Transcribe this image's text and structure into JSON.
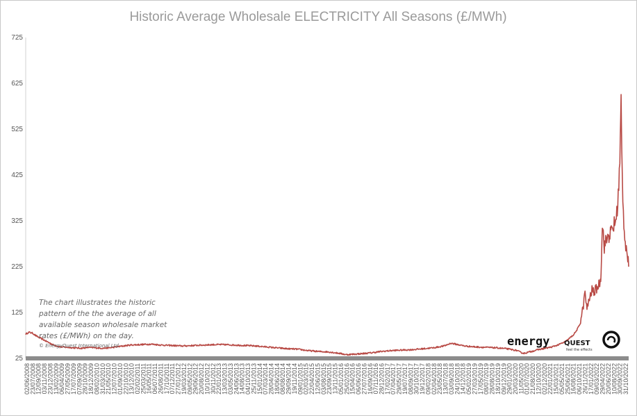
{
  "chart_data": {
    "type": "line",
    "title": "Historic Average Wholesale ELECTRICITY All Seasons (£/MWh)",
    "xlabel": "",
    "ylabel": "",
    "ylim": [
      25,
      725
    ],
    "yticks": [
      25,
      125,
      225,
      325,
      425,
      525,
      625,
      725
    ],
    "grid": false,
    "line_color": "#b84a45",
    "x_ticks": [
      "02/06/2008",
      "23/07/2008",
      "12/09/2008",
      "03/11/2008",
      "23/12/2008",
      "13/02/2009",
      "06/04/2009",
      "27/05/2009",
      "17/07/2009",
      "07/09/2009",
      "28/10/2009",
      "18/12/2009",
      "08/02/2010",
      "31/03/2010",
      "21/05/2010",
      "12/07/2010",
      "01/09/2010",
      "22/10/2010",
      "13/12/2010",
      "02/02/2011",
      "25/03/2011",
      "16/05/2011",
      "06/07/2011",
      "26/08/2011",
      "17/10/2011",
      "07/12/2011",
      "27/01/2012",
      "19/03/2012",
      "09/05/2012",
      "29/06/2012",
      "20/08/2012",
      "10/10/2012",
      "30/11/2012",
      "22/01/2013",
      "13/03/2013",
      "03/05/2013",
      "24/06/2013",
      "14/08/2013",
      "04/10/2013",
      "25/11/2013",
      "15/01/2014",
      "07/03/2014",
      "28/04/2014",
      "18/06/2014",
      "08/08/2014",
      "29/09/2014",
      "19/11/2014",
      "09/01/2015",
      "02/03/2015",
      "22/04/2015",
      "12/06/2015",
      "03/08/2015",
      "23/09/2015",
      "13/11/2015",
      "05/01/2016",
      "25/02/2016",
      "15/04/2016",
      "06/06/2016",
      "27/07/2016",
      "16/09/2016",
      "07/11/2016",
      "28/12/2016",
      "17/02/2017",
      "07/04/2017",
      "29/05/2017",
      "19/07/2017",
      "08/09/2017",
      "30/10/2017",
      "19/12/2017",
      "09/02/2018",
      "02/04/2018",
      "23/05/2018",
      "13/07/2018",
      "03/09/2018",
      "24/10/2018",
      "14/12/2018",
      "05/02/2019",
      "27/03/2019",
      "17/05/2019",
      "08/07/2019",
      "28/08/2019",
      "18/10/2019",
      "09/12/2019",
      "29/01/2020",
      "20/03/2020",
      "11/05/2020",
      "01/07/2020",
      "21/08/2020",
      "12/10/2020",
      "02/12/2020",
      "22/01/2021",
      "15/03/2021",
      "05/05/2021",
      "25/06/2021",
      "16/08/2021",
      "06/10/2021",
      "26/11/2021",
      "17/01/2022",
      "09/03/2022",
      "29/04/2022",
      "20/06/2022",
      "10/08/2022",
      "30/09/2022",
      "31/10/2022"
    ],
    "x_start": "02/06/2008",
    "x_end": "31/10/2022",
    "series": [
      {
        "x": [
          "02/06/2008",
          "01/07/2008",
          "01/08/2008",
          "01/09/2008",
          "01/10/2008",
          "01/11/2008",
          "01/12/2008",
          "01/01/2009",
          "01/02/2009",
          "01/03/2009",
          "01/04/2009",
          "01/06/2009",
          "01/08/2009",
          "01/10/2009",
          "01/12/2009",
          "01/02/2010",
          "01/04/2010",
          "01/06/2010",
          "01/08/2010",
          "01/10/2010",
          "01/12/2010",
          "01/03/2011",
          "01/06/2011",
          "01/09/2011",
          "01/12/2011",
          "01/03/2012",
          "01/06/2012",
          "01/09/2012",
          "01/12/2012",
          "01/03/2013",
          "01/06/2013",
          "01/09/2013",
          "01/12/2013",
          "01/03/2014",
          "01/06/2014",
          "01/09/2014",
          "01/12/2014",
          "01/03/2015",
          "01/06/2015",
          "01/09/2015",
          "01/12/2015",
          "01/02/2016",
          "01/04/2016",
          "01/06/2016",
          "01/09/2016",
          "01/12/2016",
          "01/03/2017",
          "01/06/2017",
          "01/09/2017",
          "01/12/2017",
          "01/03/2018",
          "01/06/2018",
          "01/08/2018",
          "01/10/2018",
          "01/12/2018",
          "01/03/2019",
          "01/06/2019",
          "01/09/2019",
          "01/12/2019",
          "01/03/2020",
          "01/04/2020",
          "01/05/2020",
          "01/07/2020",
          "01/09/2020",
          "01/11/2020",
          "01/01/2021",
          "01/03/2021",
          "01/05/2021",
          "01/07/2021",
          "01/08/2021",
          "01/09/2021",
          "15/09/2021",
          "01/10/2021",
          "15/10/2021",
          "01/11/2021",
          "15/11/2021",
          "01/12/2021",
          "15/12/2021",
          "01/01/2022",
          "01/02/2022",
          "01/03/2022",
          "07/03/2022",
          "15/03/2022",
          "01/04/2022",
          "01/05/2022",
          "01/06/2022",
          "01/07/2022",
          "15/07/2022",
          "01/08/2022",
          "15/08/2022",
          "26/08/2022",
          "01/09/2022",
          "15/09/2022",
          "01/10/2022",
          "15/10/2022",
          "31/10/2022"
        ],
        "values": [
          78,
          82,
          80,
          74,
          70,
          66,
          62,
          58,
          54,
          52,
          50,
          49,
          48,
          47,
          49,
          48,
          47,
          48,
          50,
          52,
          54,
          55,
          56,
          54,
          53,
          52,
          53,
          54,
          55,
          55,
          54,
          53,
          52,
          50,
          48,
          46,
          45,
          42,
          40,
          39,
          36,
          33,
          34,
          35,
          37,
          40,
          42,
          43,
          44,
          46,
          48,
          52,
          58,
          55,
          52,
          50,
          49,
          48,
          46,
          42,
          38,
          36,
          40,
          44,
          47,
          50,
          55,
          62,
          75,
          85,
          100,
          120,
          140,
          170,
          130,
          150,
          160,
          175,
          170,
          180,
          195,
          250,
          320,
          270,
          290,
          300,
          320,
          330,
          380,
          450,
          580,
          470,
          340,
          280,
          260,
          225
        ]
      }
    ]
  },
  "annotation": {
    "lines": [
      "The chart illustrates the historic",
      "pattern of the the average of all",
      "available season wholesale market",
      "rates (£/MWh) on the day."
    ],
    "copyright": "© EnergyQuest International Ltd"
  },
  "logo": {
    "word1": "energy",
    "word2": "QUEST",
    "tagline": "feel the effects"
  }
}
